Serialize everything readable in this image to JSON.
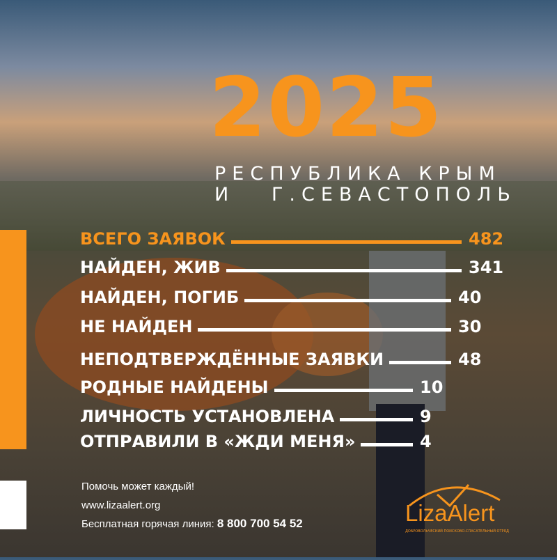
{
  "year": "2025",
  "region_line1": "РЕСПУБЛИКА КРЫМ",
  "region_line2": "И   Г.СЕВАСТОПОЛЬ",
  "accent_color": "#f7941d",
  "stats": [
    {
      "label": "ВСЕГО ЗАЯВОК",
      "value": "482",
      "highlight": true
    },
    {
      "label": "НАЙДЕН, ЖИВ",
      "value": "341"
    },
    {
      "label": "НАЙДЕН, ПОГИБ",
      "value": "40"
    },
    {
      "label": "НЕ НАЙДЕН",
      "value": "30"
    },
    {
      "label": "НЕПОДТВЕРЖДЁННЫЕ ЗАЯВКИ",
      "value": "48"
    },
    {
      "label": "РОДНЫЕ НАЙДЕНЫ",
      "value": "10"
    },
    {
      "label": "ЛИЧНОСТЬ УСТАНОВЛЕНА",
      "value": "9"
    },
    {
      "label": "ОТПРАВИЛИ В «ЖДИ МЕНЯ»",
      "value": "4"
    }
  ],
  "footer": {
    "slogan": "Помочь может каждый!",
    "website": "www.lizaalert.org",
    "hotline_label": "Бесплатная горячая линия: ",
    "hotline_number": "8 800 700 54 52"
  },
  "logo": {
    "name": "LizaAlert",
    "tagline": "ДОБРОВОЛЬЧЕСКИЙ ПОИСКОВО-СПАСАТЕЛЬНЫЙ ОТРЯД"
  }
}
